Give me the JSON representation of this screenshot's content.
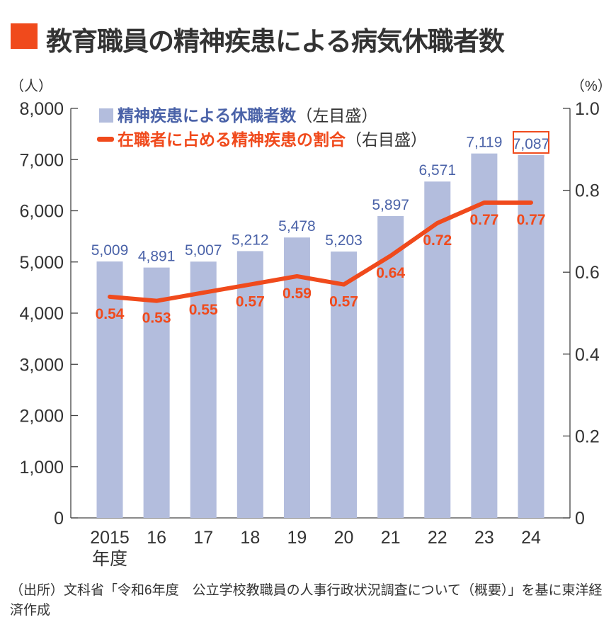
{
  "title": "教育職員の精神疾患による病気休職者数",
  "source": "（出所）文科省「令和6年度　公立学校教職員の人事行政状況調査について（概要）」を基に東洋経済作成",
  "chart_data": {
    "type": "bar+line",
    "title": "教育職員の精神疾患による病気休職者数",
    "categories": [
      "2015",
      "16",
      "17",
      "18",
      "19",
      "20",
      "21",
      "22",
      "23",
      "24"
    ],
    "x_unit_label": "年度",
    "left_axis": {
      "unit": "（人）",
      "ylim": [
        0,
        8000
      ],
      "ticks": [
        "0",
        "1,000",
        "2,000",
        "3,000",
        "4,000",
        "5,000",
        "6,000",
        "7,000",
        "8,000"
      ]
    },
    "right_axis": {
      "unit": "（%）",
      "ylim": [
        0,
        1.0
      ],
      "ticks": [
        "0",
        "0.2",
        "0.4",
        "0.6",
        "0.8",
        "1.0"
      ]
    },
    "series": [
      {
        "name": "精神疾患による休職者数",
        "suffix": "（左目盛）",
        "type": "bar",
        "axis": "left",
        "color": "#b3bddd",
        "label_color": "#4a62a8",
        "values": [
          5009,
          4891,
          5007,
          5212,
          5478,
          5203,
          5897,
          6571,
          7119,
          7087
        ],
        "labels": [
          "5,009",
          "4,891",
          "5,007",
          "5,212",
          "5,478",
          "5,203",
          "5,897",
          "6,571",
          "7,119",
          "7,087"
        ]
      },
      {
        "name": "在職者に占める精神疾患の割合",
        "suffix": "（右目盛）",
        "type": "line",
        "axis": "right",
        "color": "#f04a1c",
        "values": [
          0.54,
          0.53,
          0.55,
          0.57,
          0.59,
          0.57,
          0.64,
          0.72,
          0.77,
          0.77
        ],
        "labels": [
          "0.54",
          "0.53",
          "0.55",
          "0.57",
          "0.59",
          "0.57",
          "0.64",
          "0.72",
          "0.77",
          "0.77"
        ]
      }
    ],
    "highlighted_label": "7,087",
    "highlight_color": "#f04a1c",
    "legend_placement": "top-left",
    "grid": false
  }
}
